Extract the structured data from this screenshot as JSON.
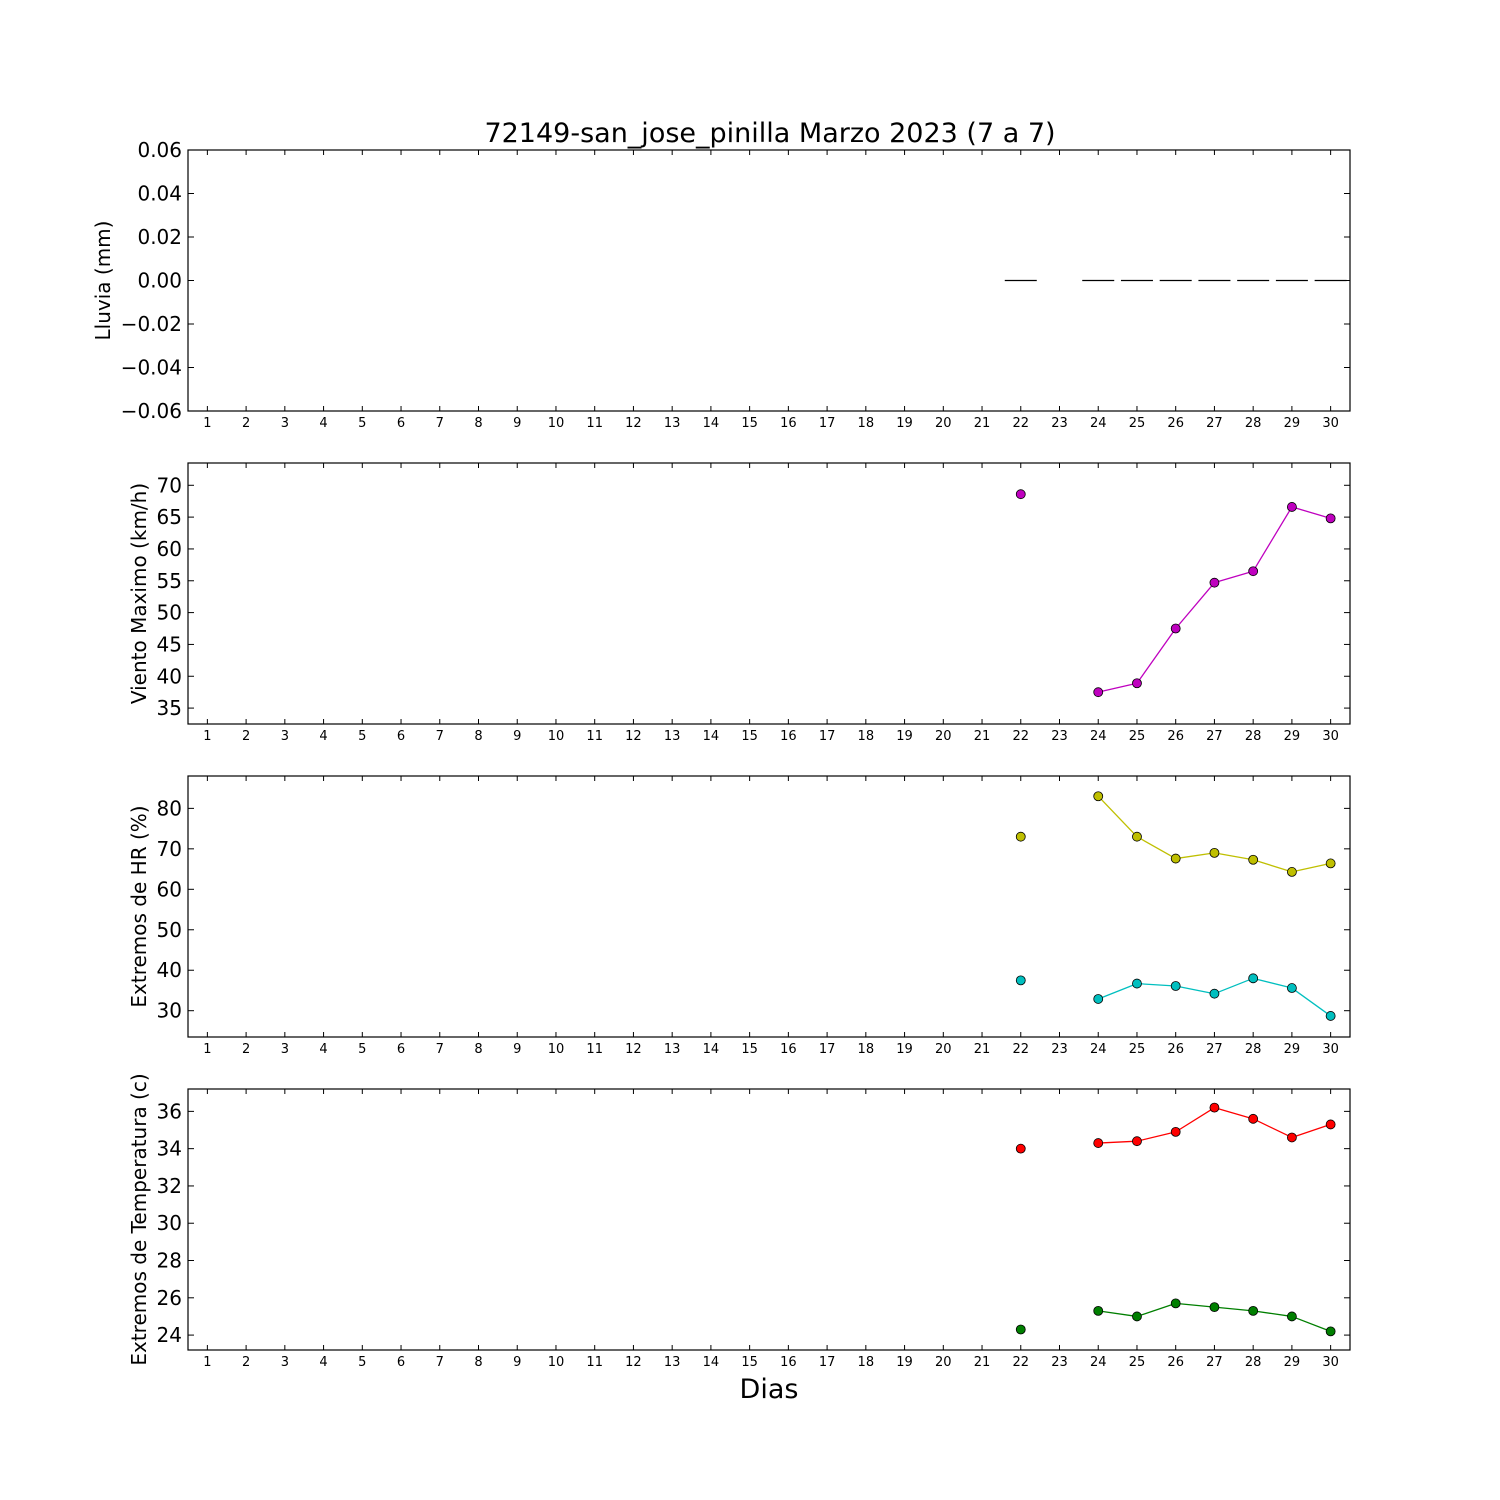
{
  "title": "72149-san_jose_pinilla Marzo 2023  (7 a 7)",
  "xlabel": "Dias",
  "chart_data": [
    {
      "type": "bar",
      "ylabel": "Lluvia (mm)",
      "x": [
        1,
        2,
        3,
        4,
        5,
        6,
        7,
        8,
        9,
        10,
        11,
        12,
        13,
        14,
        15,
        16,
        17,
        18,
        19,
        20,
        21,
        22,
        23,
        24,
        25,
        26,
        27,
        28,
        29,
        30
      ],
      "ylim": [
        -0.06,
        0.06
      ],
      "yticks": [
        -0.06,
        -0.04,
        -0.02,
        0.0,
        0.02,
        0.04,
        0.06
      ],
      "ytick_labels": [
        "−0.06",
        "−0.04",
        "−0.02",
        "0.00",
        "0.02",
        "0.04",
        "0.06"
      ],
      "series": [
        {
          "color": "#000000",
          "points": [
            [
              22,
              0
            ],
            [
              24,
              0
            ],
            [
              25,
              0
            ],
            [
              26,
              0
            ],
            [
              27,
              0
            ],
            [
              28,
              0
            ],
            [
              29,
              0
            ],
            [
              30,
              0
            ]
          ]
        }
      ]
    },
    {
      "type": "line",
      "ylabel": "Viento Maximo (km/h)",
      "x": [
        1,
        2,
        3,
        4,
        5,
        6,
        7,
        8,
        9,
        10,
        11,
        12,
        13,
        14,
        15,
        16,
        17,
        18,
        19,
        20,
        21,
        22,
        23,
        24,
        25,
        26,
        27,
        28,
        29,
        30
      ],
      "ylim": [
        32.5,
        73.5
      ],
      "yticks": [
        35,
        40,
        45,
        50,
        55,
        60,
        65,
        70
      ],
      "ytick_labels": [
        "35",
        "40",
        "45",
        "50",
        "55",
        "60",
        "65",
        "70"
      ],
      "series": [
        {
          "color": "#bf00bf",
          "points": [
            [
              22,
              68.6
            ],
            [
              24,
              37.5
            ],
            [
              25,
              38.9
            ],
            [
              26,
              47.5
            ],
            [
              27,
              54.7
            ],
            [
              28,
              56.5
            ],
            [
              29,
              66.6
            ],
            [
              30,
              64.8
            ]
          ]
        }
      ]
    },
    {
      "type": "line",
      "ylabel": "Extremos de HR (%)",
      "x": [
        1,
        2,
        3,
        4,
        5,
        6,
        7,
        8,
        9,
        10,
        11,
        12,
        13,
        14,
        15,
        16,
        17,
        18,
        19,
        20,
        21,
        22,
        23,
        24,
        25,
        26,
        27,
        28,
        29,
        30
      ],
      "ylim": [
        23.5,
        88
      ],
      "yticks": [
        30,
        40,
        50,
        60,
        70,
        80
      ],
      "ytick_labels": [
        "30",
        "40",
        "50",
        "60",
        "70",
        "80"
      ],
      "series": [
        {
          "color": "#bfbf00",
          "points": [
            [
              22,
              73
            ],
            [
              24,
              83
            ],
            [
              25,
              73
            ],
            [
              26,
              67.6
            ],
            [
              27,
              69
            ],
            [
              28,
              67.3
            ],
            [
              29,
              64.3
            ],
            [
              30,
              66.4
            ]
          ]
        },
        {
          "color": "#00bfbf",
          "points": [
            [
              22,
              37.5
            ],
            [
              24,
              32.9
            ],
            [
              25,
              36.7
            ],
            [
              26,
              36.1
            ],
            [
              27,
              34.2
            ],
            [
              28,
              38
            ],
            [
              29,
              35.6
            ],
            [
              30,
              28.7
            ]
          ]
        }
      ]
    },
    {
      "type": "line",
      "ylabel": "Extremos de Temperatura (c)",
      "x": [
        1,
        2,
        3,
        4,
        5,
        6,
        7,
        8,
        9,
        10,
        11,
        12,
        13,
        14,
        15,
        16,
        17,
        18,
        19,
        20,
        21,
        22,
        23,
        24,
        25,
        26,
        27,
        28,
        29,
        30
      ],
      "ylim": [
        23.2,
        37.2
      ],
      "yticks": [
        24,
        26,
        28,
        30,
        32,
        34,
        36
      ],
      "ytick_labels": [
        "24",
        "26",
        "28",
        "30",
        "32",
        "34",
        "36"
      ],
      "series": [
        {
          "color": "#ff0000",
          "points": [
            [
              22,
              34.0
            ],
            [
              24,
              34.3
            ],
            [
              25,
              34.4
            ],
            [
              26,
              34.9
            ],
            [
              27,
              36.2
            ],
            [
              28,
              35.6
            ],
            [
              29,
              34.6
            ],
            [
              30,
              35.3
            ]
          ]
        },
        {
          "color": "#007f00",
          "points": [
            [
              22,
              24.3
            ],
            [
              24,
              25.3
            ],
            [
              25,
              25.0
            ],
            [
              26,
              25.7
            ],
            [
              27,
              25.5
            ],
            [
              28,
              25.3
            ],
            [
              29,
              25.0
            ],
            [
              30,
              24.2
            ]
          ]
        }
      ]
    }
  ]
}
